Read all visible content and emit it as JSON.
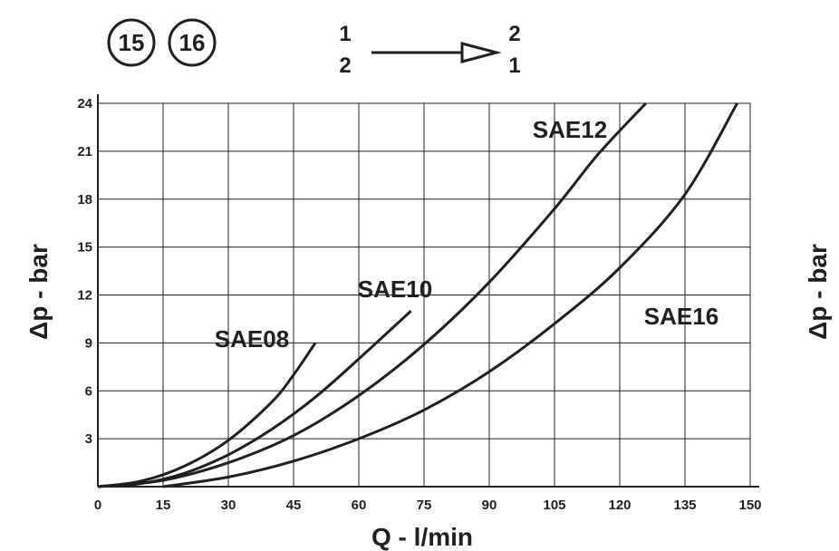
{
  "badges": [
    "15",
    "16"
  ],
  "flow_direction": {
    "from": [
      "1",
      "2"
    ],
    "to": [
      "2",
      "1"
    ]
  },
  "right_cutoff_ylabel": "Δp - bar",
  "colors": {
    "ink": "#231f20",
    "background": "#ffffff"
  },
  "chart_data": {
    "type": "line",
    "title": "",
    "xlabel": "Q - l/min",
    "ylabel": "Δp - bar",
    "xlim": [
      0,
      150
    ],
    "ylim": [
      0,
      24
    ],
    "xticks": [
      0,
      15,
      30,
      45,
      60,
      75,
      90,
      105,
      120,
      135,
      150
    ],
    "yticks": [
      3,
      6,
      9,
      12,
      15,
      18,
      21,
      24
    ],
    "grid": true,
    "legend": "inline labels",
    "series": [
      {
        "name": "SAE08",
        "x": [
          0,
          10,
          20,
          30,
          40,
          45,
          50
        ],
        "y": [
          0,
          0.35,
          1.3,
          2.9,
          5.3,
          7.0,
          9.0
        ]
      },
      {
        "name": "SAE10",
        "x": [
          0,
          10,
          20,
          30,
          40,
          50,
          60,
          72
        ],
        "y": [
          0,
          0.2,
          0.85,
          2.0,
          3.6,
          5.6,
          8.0,
          11.0
        ]
      },
      {
        "name": "SAE12",
        "x": [
          0,
          15,
          30,
          45,
          60,
          75,
          90,
          105,
          115,
          126
        ],
        "y": [
          0,
          0.4,
          1.5,
          3.2,
          5.7,
          8.9,
          12.8,
          17.4,
          20.8,
          24.0
        ]
      },
      {
        "name": "SAE16",
        "x": [
          15,
          30,
          45,
          60,
          75,
          90,
          105,
          120,
          135,
          147
        ],
        "y": [
          0,
          0.6,
          1.6,
          3.0,
          4.8,
          7.2,
          10.2,
          13.7,
          18.3,
          24.0
        ]
      }
    ]
  }
}
